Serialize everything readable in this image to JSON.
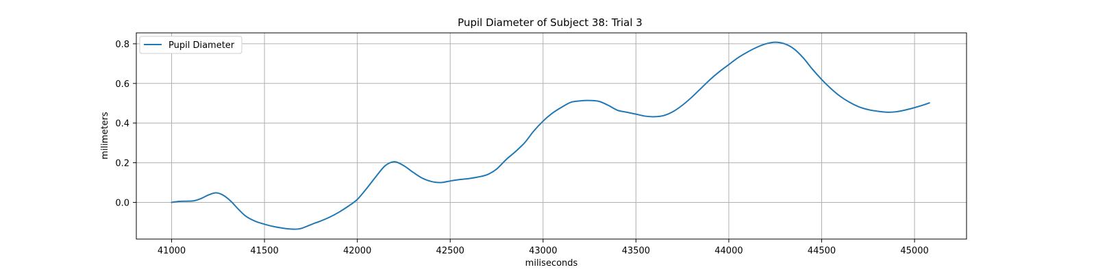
{
  "chart_data": {
    "type": "line",
    "title": "Pupil Diameter of Subject 38: Trial 3",
    "xlabel": "miliseconds",
    "ylabel": "milimeters",
    "xlim": [
      40810,
      45280
    ],
    "ylim": [
      -0.185,
      0.855
    ],
    "xticks": [
      41000,
      41500,
      42000,
      42500,
      43000,
      43500,
      44000,
      44500,
      45000
    ],
    "yticks": [
      0.0,
      0.2,
      0.4,
      0.6,
      0.8
    ],
    "xtick_labels": [
      "41000",
      "41500",
      "42000",
      "42500",
      "43000",
      "43500",
      "44000",
      "44500",
      "45000"
    ],
    "ytick_labels": [
      "0.0",
      "0.2",
      "0.4",
      "0.6",
      "0.8"
    ],
    "grid": true,
    "legend_position": "upper-left",
    "series": [
      {
        "name": "Pupil Diameter",
        "color": "#1f77b4",
        "x": [
          41000,
          41040,
          41080,
          41120,
          41160,
          41200,
          41240,
          41280,
          41320,
          41360,
          41400,
          41450,
          41500,
          41550,
          41600,
          41650,
          41690,
          41730,
          41770,
          41800,
          41850,
          41900,
          41950,
          42000,
          42050,
          42100,
          42150,
          42200,
          42250,
          42300,
          42350,
          42400,
          42450,
          42500,
          42550,
          42600,
          42650,
          42700,
          42750,
          42800,
          42850,
          42900,
          42950,
          43000,
          43050,
          43100,
          43150,
          43200,
          43250,
          43300,
          43350,
          43400,
          43450,
          43500,
          43550,
          43600,
          43650,
          43700,
          43750,
          43800,
          43850,
          43900,
          43950,
          44000,
          44050,
          44100,
          44150,
          44200,
          44250,
          44300,
          44350,
          44400,
          44450,
          44500,
          44550,
          44600,
          44650,
          44700,
          44750,
          44800,
          44850,
          44900,
          44950,
          45000,
          45050,
          45080
        ],
        "y": [
          0.0,
          0.005,
          0.006,
          0.008,
          0.02,
          0.038,
          0.048,
          0.035,
          0.005,
          -0.035,
          -0.07,
          -0.095,
          -0.11,
          -0.122,
          -0.13,
          -0.135,
          -0.133,
          -0.12,
          -0.105,
          -0.095,
          -0.075,
          -0.05,
          -0.02,
          0.015,
          0.07,
          0.13,
          0.185,
          0.205,
          0.185,
          0.152,
          0.122,
          0.105,
          0.1,
          0.108,
          0.115,
          0.12,
          0.128,
          0.14,
          0.168,
          0.215,
          0.255,
          0.3,
          0.36,
          0.41,
          0.45,
          0.48,
          0.505,
          0.512,
          0.514,
          0.51,
          0.49,
          0.465,
          0.455,
          0.445,
          0.435,
          0.432,
          0.438,
          0.458,
          0.49,
          0.53,
          0.575,
          0.62,
          0.66,
          0.695,
          0.73,
          0.758,
          0.782,
          0.8,
          0.808,
          0.8,
          0.775,
          0.73,
          0.672,
          0.62,
          0.574,
          0.535,
          0.505,
          0.482,
          0.468,
          0.46,
          0.455,
          0.457,
          0.466,
          0.478,
          0.492,
          0.502
        ]
      }
    ]
  }
}
